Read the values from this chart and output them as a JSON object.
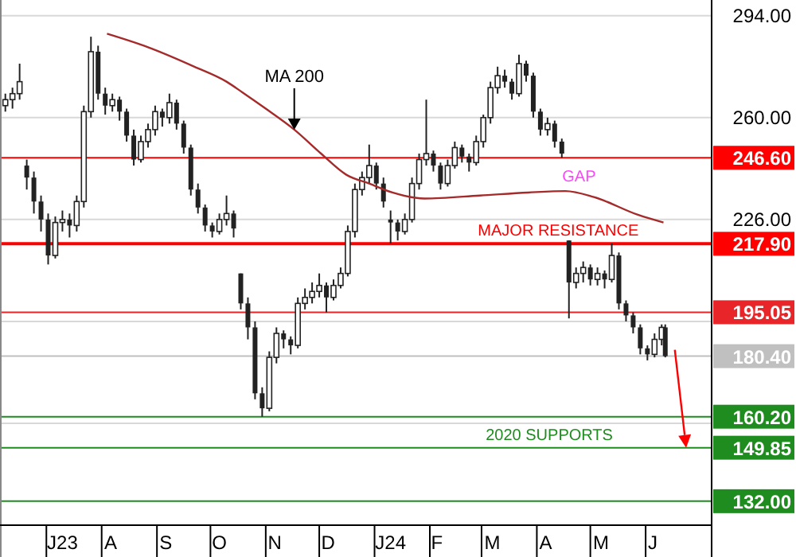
{
  "chart_data": {
    "type": "candlestick",
    "grid": "y",
    "color": "#222222",
    "xlim": [
      "2023-06-05",
      "2024-07-08"
    ],
    "ylim": [
      124,
      295
    ],
    "xticks": [
      {
        "value": "2023-07-10",
        "label": "J23"
      },
      {
        "value": "2023-08-06",
        "label": "A"
      },
      {
        "value": "2023-09-06",
        "label": "S"
      },
      {
        "value": "2023-10-06",
        "label": "O"
      },
      {
        "value": "2023-11-06",
        "label": "N"
      },
      {
        "value": "2023-12-06",
        "label": "D"
      },
      {
        "value": "2024-01-10",
        "label": "J24"
      },
      {
        "value": "2024-02-05",
        "label": "F"
      },
      {
        "value": "2024-03-07",
        "label": "M"
      },
      {
        "value": "2024-04-06",
        "label": "A"
      },
      {
        "value": "2024-05-07",
        "label": "M"
      },
      {
        "value": "2024-06-05",
        "label": "J"
      }
    ],
    "yticks": [
      {
        "value": 294,
        "label": "294.00"
      },
      {
        "value": 260,
        "label": "260.00"
      },
      {
        "value": 226,
        "label": "226.00"
      },
      {
        "value": 192,
        "label": null
      },
      {
        "value": 158,
        "label": null
      }
    ],
    "x": [
      "2023-06-08",
      "2023-06-12",
      "2023-06-16",
      "2023-06-20",
      "2023-06-24",
      "2023-06-28",
      "2023-07-02",
      "2023-07-06",
      "2023-07-10",
      "2023-07-14",
      "2023-07-18",
      "2023-07-22",
      "2023-07-26",
      "2023-07-30",
      "2023-08-03",
      "2023-08-07",
      "2023-08-11",
      "2023-08-15",
      "2023-08-19",
      "2023-08-23",
      "2023-08-27",
      "2023-08-31",
      "2023-09-04",
      "2023-09-08",
      "2023-09-12",
      "2023-09-16",
      "2023-09-20",
      "2023-09-24",
      "2023-09-28",
      "2023-10-02",
      "2023-10-06",
      "2023-10-10",
      "2023-10-14",
      "2023-10-18",
      "2023-10-22",
      "2023-10-26",
      "2023-10-30",
      "2023-11-03",
      "2023-11-07",
      "2023-11-11",
      "2023-11-15",
      "2023-11-19",
      "2023-11-23",
      "2023-11-27",
      "2023-12-01",
      "2023-12-05",
      "2023-12-09",
      "2023-12-13",
      "2023-12-17",
      "2023-12-21",
      "2023-12-25",
      "2023-12-29",
      "2024-01-02",
      "2024-01-06",
      "2024-01-10",
      "2024-01-14",
      "2024-01-18",
      "2024-01-22",
      "2024-01-26",
      "2024-01-30",
      "2024-02-03",
      "2024-02-07",
      "2024-02-11",
      "2024-02-15",
      "2024-02-19",
      "2024-02-23",
      "2024-02-27",
      "2024-03-02",
      "2024-03-06",
      "2024-03-10",
      "2024-03-14",
      "2024-03-18",
      "2024-03-22",
      "2024-03-26",
      "2024-03-30",
      "2024-04-03",
      "2024-04-07",
      "2024-04-11",
      "2024-04-15",
      "2024-04-19",
      "2024-04-23",
      "2024-04-27",
      "2024-05-01",
      "2024-05-05",
      "2024-05-09",
      "2024-05-13",
      "2024-05-17",
      "2024-05-21",
      "2024-05-25",
      "2024-05-29",
      "2024-06-02",
      "2024-06-06",
      "2024-06-10",
      "2024-06-12"
    ],
    "ohlc": [
      [
        264,
        268,
        262,
        266
      ],
      [
        266,
        270,
        263,
        268
      ],
      [
        268,
        278,
        266,
        272
      ],
      [
        244,
        246,
        236,
        240
      ],
      [
        240,
        242,
        228,
        232
      ],
      [
        232,
        234,
        222,
        226
      ],
      [
        226,
        228,
        211,
        214
      ],
      [
        214,
        227,
        213,
        225
      ],
      [
        225,
        229,
        222,
        226
      ],
      [
        226,
        228,
        220,
        224
      ],
      [
        224,
        234,
        222,
        232
      ],
      [
        232,
        264,
        230,
        262
      ],
      [
        262,
        287,
        260,
        282
      ],
      [
        282,
        284,
        266,
        268
      ],
      [
        268,
        270,
        261,
        264
      ],
      [
        264,
        268,
        262,
        266
      ],
      [
        266,
        267,
        259,
        262
      ],
      [
        262,
        263,
        252,
        254
      ],
      [
        254,
        256,
        244,
        246
      ],
      [
        246,
        254,
        245,
        252
      ],
      [
        252,
        258,
        250,
        256
      ],
      [
        256,
        264,
        254,
        262
      ],
      [
        262,
        263,
        257,
        260
      ],
      [
        260,
        268,
        258,
        265
      ],
      [
        265,
        266,
        256,
        258
      ],
      [
        258,
        259,
        248,
        250
      ],
      [
        250,
        251,
        234,
        236
      ],
      [
        236,
        238,
        228,
        230
      ],
      [
        230,
        231,
        222,
        224
      ],
      [
        224,
        225,
        220,
        222
      ],
      [
        222,
        228,
        221,
        226
      ],
      [
        226,
        234,
        224,
        228
      ],
      [
        228,
        229,
        220,
        223
      ],
      [
        208,
        208,
        196,
        198
      ],
      [
        198,
        200,
        186,
        190
      ],
      [
        190,
        192,
        166,
        168
      ],
      [
        168,
        170,
        160.2,
        163
      ],
      [
        163,
        182,
        162,
        180
      ],
      [
        180,
        190,
        178,
        188
      ],
      [
        188,
        189,
        183,
        186
      ],
      [
        186,
        187,
        181,
        184
      ],
      [
        184,
        200,
        183,
        198
      ],
      [
        198,
        203,
        196,
        200
      ],
      [
        200,
        205,
        198,
        202
      ],
      [
        202,
        208,
        200,
        204
      ],
      [
        204,
        205,
        195,
        200
      ],
      [
        200,
        206,
        199,
        204
      ],
      [
        204,
        210,
        203,
        208
      ],
      [
        208,
        224,
        207,
        222
      ],
      [
        222,
        238,
        220,
        236
      ],
      [
        236,
        242,
        234,
        240
      ],
      [
        240,
        251,
        238,
        244
      ],
      [
        244,
        245,
        236,
        238
      ],
      [
        238,
        240,
        230,
        232
      ],
      [
        226,
        229,
        218,
        225
      ],
      [
        225,
        226,
        219,
        222
      ],
      [
        222,
        228,
        221,
        226
      ],
      [
        226,
        240,
        225,
        238
      ],
      [
        238,
        248,
        236,
        246
      ],
      [
        246,
        266,
        244,
        248
      ],
      [
        248,
        249,
        242,
        244
      ],
      [
        244,
        245,
        236,
        238
      ],
      [
        238,
        246,
        237,
        244
      ],
      [
        244,
        252,
        243,
        250
      ],
      [
        250,
        251,
        245,
        247
      ],
      [
        247,
        248,
        242,
        245
      ],
      [
        245,
        254,
        244,
        252
      ],
      [
        252,
        261,
        250,
        260
      ],
      [
        260,
        272,
        258,
        270
      ],
      [
        270,
        277,
        268,
        274
      ],
      [
        274,
        276,
        270,
        272
      ],
      [
        272,
        273,
        266,
        268
      ],
      [
        268,
        281,
        267,
        278
      ],
      [
        278,
        279,
        272,
        274
      ],
      [
        274,
        275,
        260,
        262
      ],
      [
        262,
        263,
        254,
        256
      ],
      [
        256,
        260,
        254,
        258
      ],
      [
        258,
        259,
        250,
        252
      ],
      [
        252,
        253,
        246.6,
        248
      ],
      [
        219,
        219,
        193,
        205
      ],
      [
        205,
        210,
        203,
        208
      ],
      [
        208,
        212,
        205,
        210
      ],
      [
        210,
        211,
        204,
        206
      ],
      [
        206,
        210,
        204,
        208
      ],
      [
        208,
        209,
        203,
        206
      ],
      [
        206,
        218,
        205,
        214
      ],
      [
        214,
        215,
        196,
        198
      ],
      [
        198,
        199,
        192,
        194
      ],
      [
        194,
        195,
        188,
        190
      ],
      [
        190,
        191,
        181,
        183
      ],
      [
        183,
        184,
        179,
        181
      ],
      [
        181,
        188,
        180,
        186
      ],
      [
        186,
        191,
        184,
        190
      ],
      [
        190,
        191,
        180,
        180.4
      ]
    ],
    "series": [
      {
        "type": "line",
        "name": "MA 200",
        "color": "#a52a2a",
        "x": [
          "2023-08-04",
          "2023-08-27",
          "2023-09-22",
          "2023-10-10",
          "2023-10-19",
          "2023-11-01",
          "2023-11-17",
          "2023-12-02",
          "2023-12-16",
          "2023-12-29",
          "2024-01-11",
          "2024-01-29",
          "2024-02-29",
          "2024-03-27",
          "2024-04-17",
          "2024-05-03",
          "2024-05-28",
          "2024-06-11"
        ],
        "values": [
          288,
          283.5,
          277,
          272,
          268.4,
          263,
          256,
          248,
          241,
          238,
          235,
          233,
          234,
          235,
          235.5,
          233.5,
          227.5,
          225
        ]
      }
    ],
    "ref_lines": [
      {
        "axis": "y",
        "value": 246.6,
        "label": "246.60",
        "color": "#ff0000"
      },
      {
        "axis": "y",
        "value": 217.9,
        "label": "217.90",
        "color": "#ff0000"
      },
      {
        "axis": "y",
        "value": 195.05,
        "label": "195.05",
        "color": "#e8262a"
      },
      {
        "axis": "y",
        "value": 180.4,
        "label": "180.40",
        "color": "#c0c0c0"
      },
      {
        "axis": "y",
        "value": 160.2,
        "label": "160.20",
        "color": "#1e8c1e"
      },
      {
        "axis": "y",
        "value": 149.85,
        "label": "149.85",
        "color": "#1e8c1e"
      },
      {
        "axis": "y",
        "value": 132,
        "label": "132.00",
        "color": "#1e8c1e"
      }
    ],
    "annotations": [
      "GAP",
      {
        "text": "MAJOR RESISTANCE",
        "x": "2024-04-13",
        "y": 217.9
      },
      {
        "text": "2020 SUPPORTS",
        "x": "2024-04-08",
        "y": 149.85
      }
    ]
  }
}
